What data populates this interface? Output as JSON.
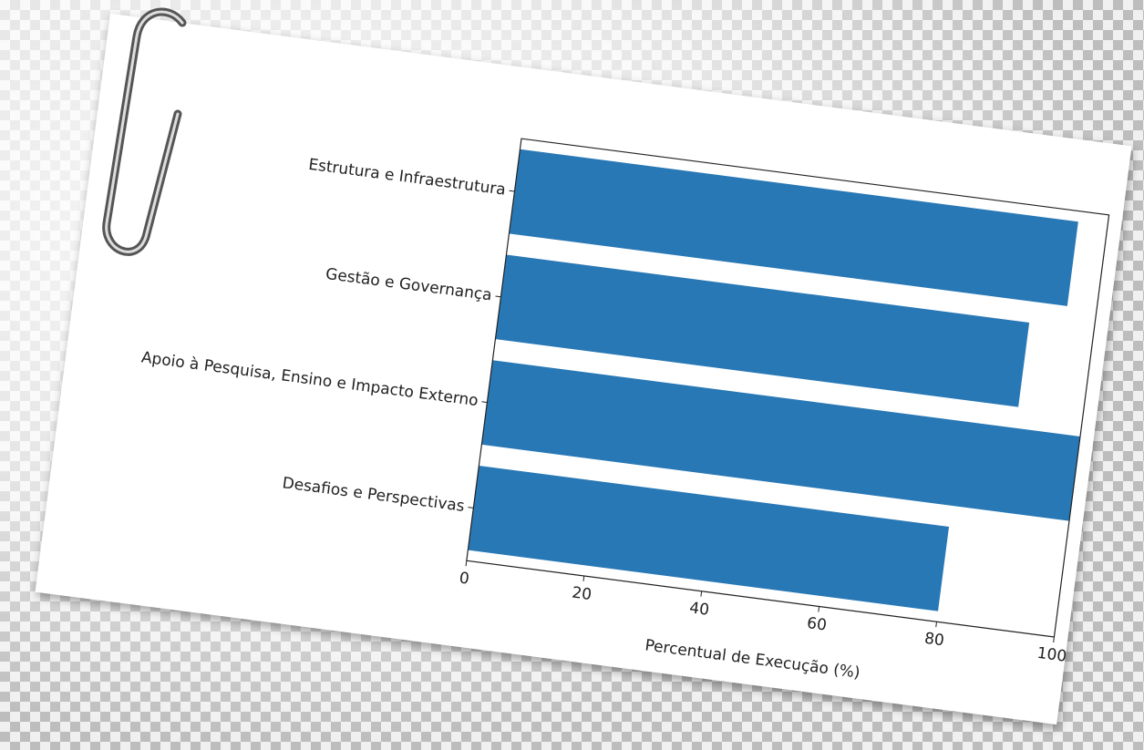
{
  "chart_data": {
    "type": "barh",
    "categories": [
      "Estrutura e Infraestrutura",
      "Gestão e Governança",
      "Apoio à Pesquisa, Ensino e Impacto Externo",
      "Desafios e Perspectivas"
    ],
    "values": [
      95,
      89,
      100,
      80
    ],
    "color": "#2878b5",
    "xlabel": "Percentual de Execução (%)",
    "xlim": [
      0,
      100
    ],
    "xticks": [
      0,
      20,
      40,
      60,
      80,
      100
    ]
  }
}
